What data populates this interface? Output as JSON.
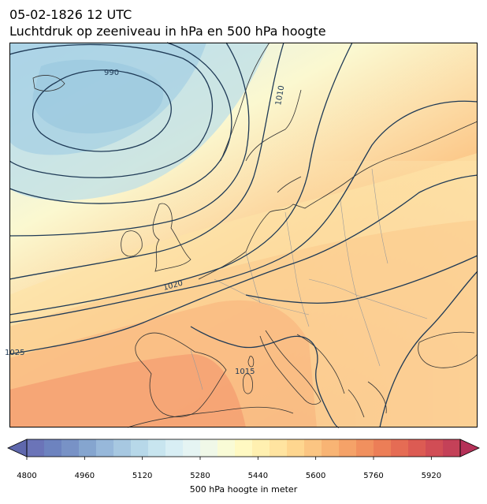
{
  "header": {
    "datetime": "05-02-1826 12 UTC",
    "subtitle": "Luchtdruk op zeeniveau in hPa en 500 hPa hoogte"
  },
  "map": {
    "isobar_color": "#1f3a56",
    "coastline_color": "#333333",
    "border_color": "#9a9a9a",
    "isobar_labels": [
      "990",
      "1010",
      "1020",
      "1025",
      "1015"
    ]
  },
  "colorbar": {
    "label": "500 hPa hoogte in meter",
    "min": 4800,
    "max": 6000,
    "ticks": [
      "4800",
      "4960",
      "5120",
      "5280",
      "5440",
      "5600",
      "5760",
      "5920"
    ],
    "colors": [
      "#6b74b8",
      "#6d83bf",
      "#7892c6",
      "#85a5cf",
      "#97b8da",
      "#a7c8e1",
      "#b7d8e9",
      "#c8e5ef",
      "#d8eef4",
      "#e5f4f3",
      "#f0f8e8",
      "#f9fbd6",
      "#fff9c2",
      "#fff0b0",
      "#ffe4a0",
      "#fed68f",
      "#fbc582",
      "#f8b474",
      "#f5a268",
      "#f1905e",
      "#ec7e57",
      "#e56c54",
      "#dc5b53",
      "#d14d55",
      "#c44158"
    ]
  }
}
